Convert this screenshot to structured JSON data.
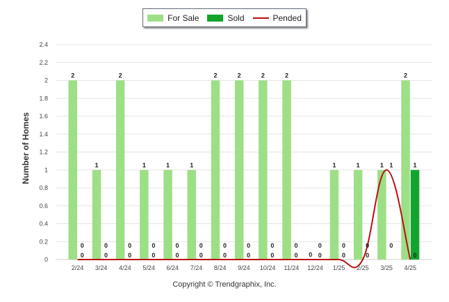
{
  "chart_data": {
    "type": "bar",
    "categories": [
      "2/24",
      "3/24",
      "4/24",
      "5/24",
      "6/24",
      "7/24",
      "8/24",
      "9/24",
      "10/24",
      "11/24",
      "12/24",
      "1/25",
      "2/25",
      "3/25",
      "4/25"
    ],
    "series": [
      {
        "name": "For Sale",
        "kind": "bar",
        "color": "#9ddf86",
        "values": [
          2,
          1,
          2,
          1,
          1,
          1,
          2,
          2,
          2,
          2,
          0,
          1,
          1,
          1,
          2
        ]
      },
      {
        "name": "Sold",
        "kind": "bar",
        "color": "#12a52e",
        "values": [
          0,
          0,
          0,
          0,
          0,
          0,
          0,
          0,
          0,
          0,
          0,
          0,
          0,
          0,
          1
        ]
      },
      {
        "name": "Pended",
        "kind": "line",
        "color": "#b80f0f",
        "values": [
          0,
          0,
          0,
          0,
          0,
          0,
          0,
          0,
          0,
          0,
          0,
          0,
          0,
          1,
          0
        ]
      }
    ],
    "ylabel": "Number of Homes",
    "ylim": [
      0,
      2.4
    ],
    "yticks": [
      "0",
      "0.2",
      "0.4",
      "0.6",
      "0.8",
      "1",
      "1.2",
      "1.4",
      "1.6",
      "1.8",
      "2",
      "2.2",
      "2.4"
    ],
    "grid": true,
    "legend_position": "top"
  },
  "copyright": "Copyright © Trendgraphix, Inc."
}
